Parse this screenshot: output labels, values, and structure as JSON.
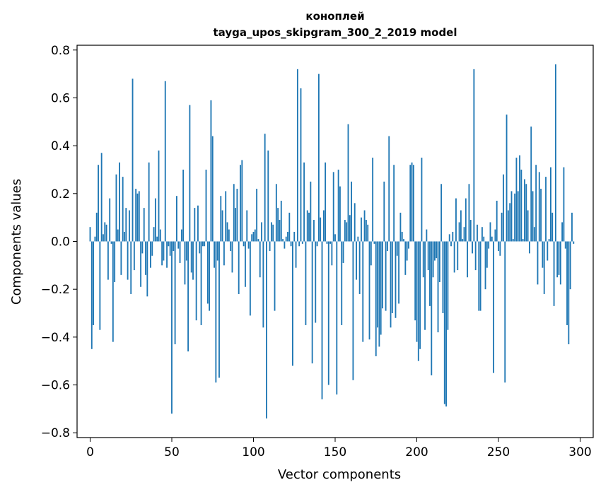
{
  "chart_data": {
    "type": "bar",
    "title": "коноплей",
    "subtitle": "tayga_upos_skipgram_300_2_2019 model",
    "xlabel": "Vector components",
    "ylabel": "Components values",
    "xlim": [
      -8,
      308
    ],
    "ylim": [
      -0.82,
      0.82
    ],
    "xticks": [
      0,
      50,
      100,
      150,
      200,
      250,
      300
    ],
    "yticks": [
      -0.8,
      -0.6,
      -0.4,
      -0.2,
      0.0,
      0.2,
      0.4,
      0.6,
      0.8
    ],
    "ytick_labels": [
      "−0.8",
      "−0.6",
      "−0.4",
      "−0.2",
      "0.0",
      "0.2",
      "0.4",
      "0.6",
      "0.8"
    ],
    "bar_color": "#1f77b4",
    "grid": false,
    "values": [
      0.06,
      -0.45,
      -0.35,
      0.02,
      0.12,
      0.32,
      -0.37,
      0.37,
      0.03,
      0.08,
      0.07,
      -0.16,
      0.18,
      -0.01,
      -0.42,
      -0.17,
      0.28,
      0.05,
      0.33,
      -0.14,
      0.27,
      0.04,
      0.14,
      -0.16,
      0.13,
      -0.22,
      0.68,
      -0.12,
      0.22,
      0.2,
      0.21,
      -0.19,
      -0.05,
      0.14,
      -0.14,
      -0.23,
      0.33,
      -0.11,
      -0.06,
      0.06,
      0.18,
      0.02,
      0.38,
      0.05,
      -0.1,
      -0.08,
      0.67,
      -0.11,
      -0.02,
      -0.06,
      -0.72,
      -0.04,
      -0.43,
      0.19,
      -0.03,
      -0.09,
      0.05,
      0.3,
      -0.18,
      -0.08,
      -0.46,
      0.57,
      -0.13,
      -0.16,
      0.14,
      -0.33,
      0.15,
      -0.05,
      -0.35,
      -0.02,
      -0.02,
      0.3,
      -0.26,
      -0.29,
      0.59,
      0.44,
      -0.11,
      -0.59,
      -0.08,
      -0.57,
      0.19,
      0.13,
      -0.1,
      0.21,
      0.08,
      0.05,
      -0.04,
      -0.13,
      0.24,
      0.14,
      0.22,
      -0.22,
      0.32,
      0.34,
      -0.02,
      -0.19,
      0.13,
      -0.03,
      -0.31,
      0.03,
      0.04,
      0.05,
      0.22,
      0.01,
      -0.15,
      0.08,
      -0.36,
      0.45,
      -0.74,
      0.38,
      -0.04,
      0.08,
      0.07,
      -0.29,
      0.24,
      0.14,
      0.09,
      0.17,
      0.01,
      -0.03,
      0.02,
      0.04,
      0.12,
      -0.02,
      -0.52,
      0.04,
      -0.11,
      0.72,
      -0.02,
      0.64,
      -0.01,
      0.33,
      -0.35,
      0.13,
      0.12,
      0.25,
      -0.51,
      0.09,
      -0.34,
      -0.02,
      0.7,
      0.1,
      -0.66,
      0.13,
      0.33,
      -0.01,
      -0.6,
      -0.01,
      -0.1,
      0.29,
      0.03,
      -0.64,
      0.3,
      0.23,
      -0.35,
      -0.09,
      0.09,
      0.08,
      0.49,
      0.11,
      0.25,
      -0.58,
      0.16,
      -0.16,
      0.02,
      -0.22,
      0.1,
      -0.42,
      0.13,
      0.09,
      0.07,
      -0.41,
      -0.1,
      0.35,
      -0.01,
      -0.48,
      -0.36,
      -0.44,
      -0.39,
      -0.28,
      0.25,
      -0.29,
      -0.04,
      0.44,
      -0.36,
      -0.3,
      0.32,
      -0.32,
      -0.06,
      -0.26,
      0.12,
      0.04,
      0.01,
      -0.14,
      -0.08,
      -0.03,
      0.32,
      0.33,
      0.32,
      -0.33,
      -0.42,
      -0.5,
      -0.45,
      0.35,
      -0.15,
      -0.37,
      0.05,
      -0.12,
      -0.27,
      -0.56,
      -0.15,
      -0.08,
      -0.07,
      -0.38,
      -0.17,
      0.24,
      -0.3,
      -0.68,
      -0.69,
      -0.37,
      0.03,
      -0.02,
      0.04,
      -0.13,
      0.18,
      -0.12,
      0.08,
      0.13,
      0.01,
      0.06,
      0.18,
      -0.15,
      0.24,
      0.09,
      -0.05,
      0.72,
      -0.12,
      0.07,
      -0.29,
      -0.29,
      0.06,
      0.02,
      -0.2,
      -0.11,
      -0.03,
      0.08,
      0.02,
      -0.55,
      0.05,
      0.17,
      -0.04,
      -0.06,
      0.12,
      0.28,
      -0.59,
      0.53,
      0.13,
      0.16,
      0.21,
      0.01,
      0.2,
      0.35,
      0.21,
      0.36,
      0.3,
      0.01,
      0.26,
      0.24,
      0.13,
      -0.05,
      0.48,
      0.21,
      0.06,
      0.32,
      -0.18,
      0.29,
      0.22,
      -0.11,
      -0.22,
      0.27,
      -0.08,
      0.01,
      0.31,
      0.12,
      -0.27,
      0.74,
      -0.15,
      -0.14,
      -0.18,
      0.08,
      0.31,
      -0.03,
      -0.35,
      -0.43,
      -0.2,
      0.12,
      -0.01
    ]
  }
}
